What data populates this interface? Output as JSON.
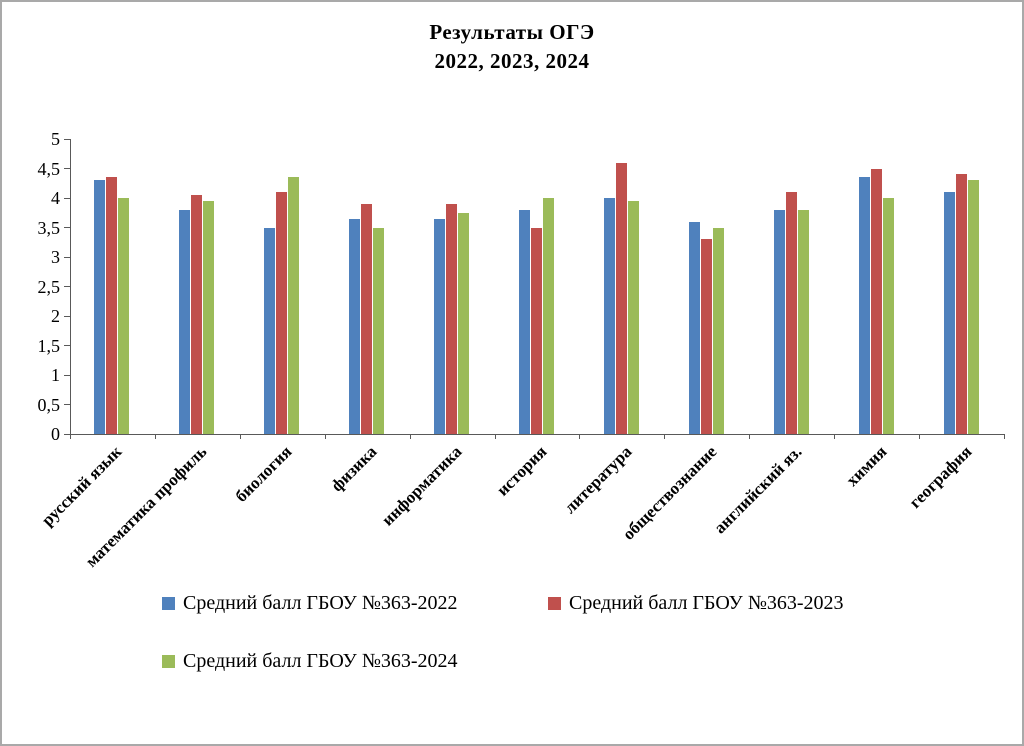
{
  "chart_data": {
    "type": "bar",
    "title_line1": "Результаты ОГЭ",
    "title_line2": "2022, 2023, 2024",
    "categories": [
      "русский язык",
      "математика профиль",
      "биология",
      "физика",
      "информатика",
      "история",
      "литература",
      "обществознание",
      "английский яз.",
      "химия",
      "география"
    ],
    "series": [
      {
        "name": "Средний балл ГБОУ №363-2022",
        "color": "#4F81BD",
        "values": [
          4.3,
          3.8,
          3.5,
          3.65,
          3.65,
          3.8,
          4.0,
          3.6,
          3.8,
          4.35,
          4.1
        ]
      },
      {
        "name": "Средний балл ГБОУ №363-2023",
        "color": "#C0504D",
        "values": [
          4.35,
          4.05,
          4.1,
          3.9,
          3.9,
          3.5,
          4.6,
          3.3,
          4.1,
          4.5,
          4.4
        ]
      },
      {
        "name": "Средний балл ГБОУ №363-2024",
        "color": "#9BBB59",
        "values": [
          4.0,
          3.95,
          4.35,
          3.5,
          3.75,
          4.0,
          3.95,
          3.5,
          3.8,
          4.0,
          4.3
        ]
      }
    ],
    "ylim": [
      0,
      5
    ],
    "ytick_step": 0.5,
    "ytick_labels": [
      "0",
      "0,5",
      "1",
      "1,5",
      "2",
      "2,5",
      "3",
      "3,5",
      "4",
      "4,5",
      "5"
    ],
    "grid": false,
    "legend_position": "bottom"
  }
}
